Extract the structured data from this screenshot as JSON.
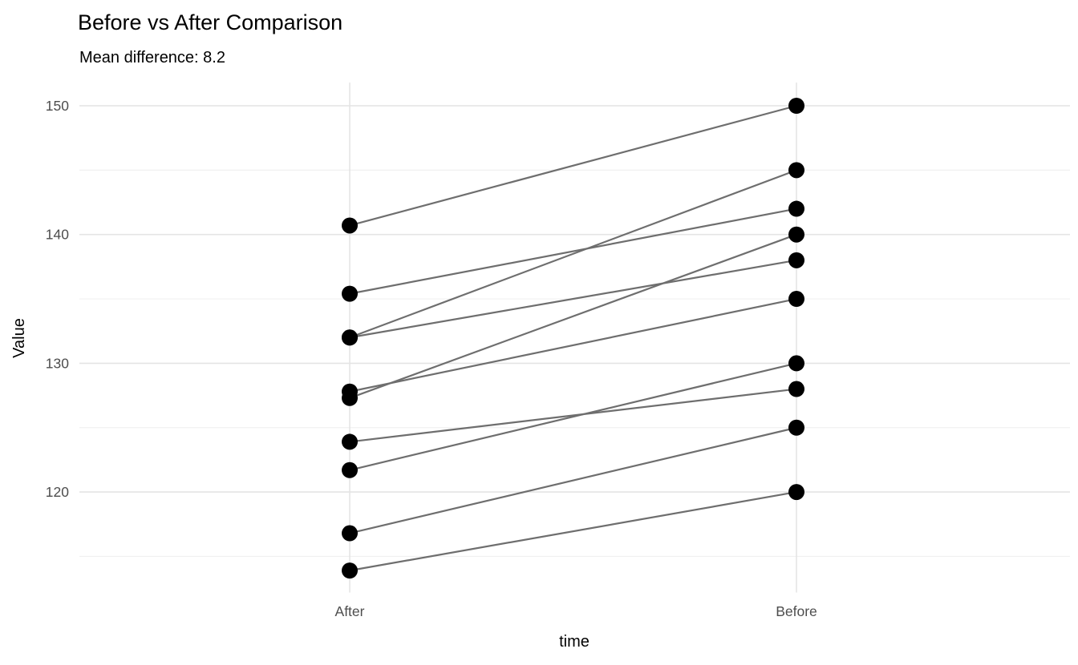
{
  "chart_data": {
    "type": "line",
    "variant": "paired-slopegraph",
    "title": "Before vs After Comparison",
    "subtitle": "Mean difference: 8.2",
    "xlabel": "time",
    "ylabel": "Value",
    "categories": [
      "After",
      "Before"
    ],
    "mean_difference": 8.2,
    "pairs": [
      {
        "before": 150,
        "after": 140.7
      },
      {
        "before": 145,
        "after": 132.0
      },
      {
        "before": 142,
        "after": 135.4
      },
      {
        "before": 140,
        "after": 127.3
      },
      {
        "before": 138,
        "after": 132.0
      },
      {
        "before": 135,
        "after": 127.8
      },
      {
        "before": 130,
        "after": 121.7
      },
      {
        "before": 128,
        "after": 123.9
      },
      {
        "before": 125,
        "after": 116.8
      },
      {
        "before": 120,
        "after": 113.9
      }
    ],
    "yticks": [
      120,
      130,
      140,
      150
    ],
    "ytick_labels": [
      "120",
      "130",
      "140",
      "150"
    ],
    "yticks_minor": [
      115,
      125,
      135,
      145
    ],
    "ylim": [
      112.2,
      151.8
    ],
    "grid": true,
    "legend": "none",
    "colors": {
      "point": "#000000",
      "line": "#6e6e6e",
      "grid_major": "#e4e4e4",
      "grid_minor": "#f0f0f0",
      "axis_text": "#4d4d4d",
      "title_text": "#000000",
      "background": "#ffffff"
    }
  }
}
